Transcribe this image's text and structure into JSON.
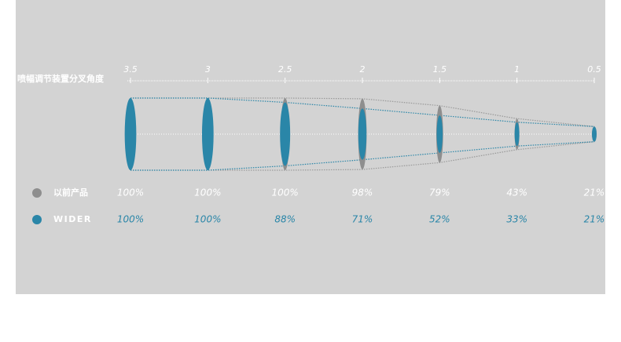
{
  "chart_data": {
    "type": "spray",
    "x_label": "喷幅调节装置分叉角度",
    "x": [
      3.5,
      3,
      2.5,
      2,
      1.5,
      1,
      0.5
    ],
    "xlim": [
      3.5,
      0.5
    ],
    "xticks": [
      3.5,
      3,
      2.5,
      2,
      1.5,
      1,
      0.5
    ],
    "ylim": [
      0,
      100
    ],
    "series": [
      {
        "name": "以前产品",
        "color": "#8e8e8e",
        "values": [
          100,
          100,
          100,
          98,
          79,
          43,
          21
        ],
        "value_labels": [
          "100%",
          "100%",
          "100%",
          "98%",
          "79%",
          "43%",
          "21%"
        ]
      },
      {
        "name": "WIDER",
        "color": "#2a86a8",
        "values": [
          100,
          100,
          88,
          71,
          52,
          33,
          21
        ],
        "value_labels": [
          "100%",
          "100%",
          "88%",
          "71%",
          "52%",
          "33%",
          "21%"
        ]
      }
    ]
  }
}
